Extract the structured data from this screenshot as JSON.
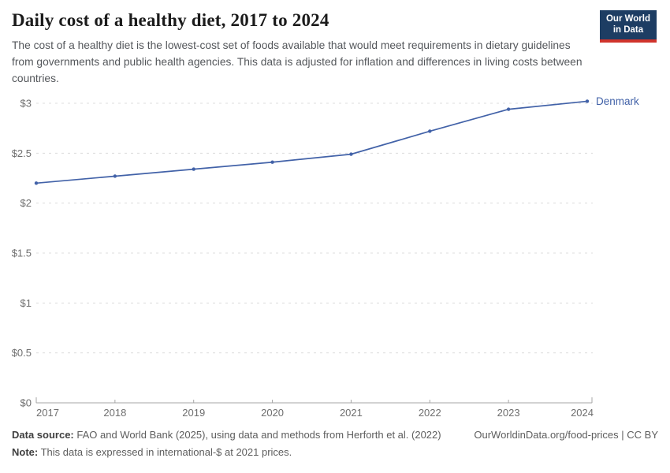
{
  "header": {
    "title": "Daily cost of a healthy diet, 2017 to 2024",
    "subtitle": "The cost of a healthy diet is the lowest-cost set of foods available that would meet requirements in dietary guidelines from governments and public health agencies. This data is adjusted for inflation and differences in living costs between countries.",
    "logo": {
      "line1": "Our World",
      "line2": "in Data"
    }
  },
  "chart_data": {
    "type": "line",
    "title": "Daily cost of a healthy diet, 2017 to 2024",
    "x": [
      2017,
      2018,
      2019,
      2020,
      2021,
      2022,
      2023,
      2024
    ],
    "series": [
      {
        "name": "Denmark",
        "values": [
          2.2,
          2.27,
          2.34,
          2.41,
          2.49,
          2.72,
          2.94,
          3.02
        ],
        "color": "#4262a8"
      }
    ],
    "ylim": [
      0,
      3
    ],
    "yticks": [
      0,
      0.5,
      1,
      1.5,
      2,
      2.5,
      3
    ],
    "ytick_prefix": "$",
    "grid": "horizontal-dashed",
    "legend_position": "end-of-line-label",
    "unit": "international-$ at 2021 prices"
  },
  "footer": {
    "source_label": "Data source:",
    "source_text": " FAO and World Bank (2025), using data and methods from Herforth et al. (2022)",
    "note_label": "Note:",
    "note_text": " This data is expressed in international-$ at 2021 prices.",
    "license": "OurWorldinData.org/food-prices | CC BY"
  },
  "colors": {
    "series": "#4262a8",
    "grid": "#dcdcdc",
    "axis": "#a5a5a5",
    "axis_text": "#6e6e6e",
    "logo_bg": "#1d3d63",
    "logo_accent": "#d0342c"
  }
}
